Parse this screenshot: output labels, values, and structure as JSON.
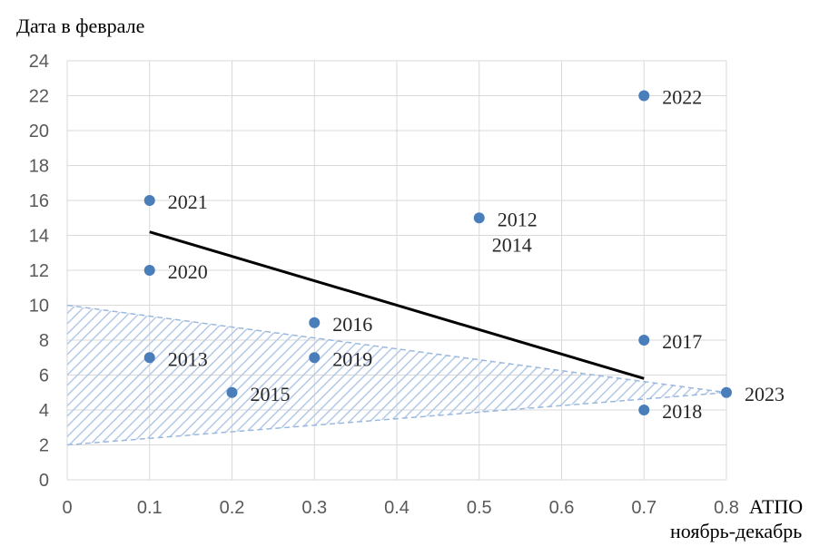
{
  "chart_data": {
    "type": "scatter",
    "title": "",
    "ylabel": "Дата в феврале",
    "xlabel_line1": "АТПО",
    "xlabel_line2": "ноябрь-декабрь",
    "xlim": [
      0,
      0.8
    ],
    "ylim": [
      0,
      24
    ],
    "x_ticks": [
      0,
      0.1,
      0.2,
      0.3,
      0.4,
      0.5,
      0.6,
      0.7,
      0.8
    ],
    "x_tick_labels": [
      "0",
      "0.1",
      "0.2",
      "0.3",
      "0.4",
      "0.5",
      "0.6",
      "0.7",
      "0.8"
    ],
    "y_ticks": [
      0,
      2,
      4,
      6,
      8,
      10,
      12,
      14,
      16,
      18,
      20,
      22,
      24
    ],
    "y_tick_labels": [
      "0",
      "2",
      "4",
      "6",
      "8",
      "10",
      "12",
      "14",
      "16",
      "18",
      "20",
      "22",
      "24"
    ],
    "grid": true,
    "points": [
      {
        "x": 0.1,
        "y": 16,
        "label": "2021"
      },
      {
        "x": 0.1,
        "y": 12,
        "label": "2020"
      },
      {
        "x": 0.1,
        "y": 7,
        "label": "2013"
      },
      {
        "x": 0.2,
        "y": 5,
        "label": "2015"
      },
      {
        "x": 0.3,
        "y": 9,
        "label": "2016"
      },
      {
        "x": 0.3,
        "y": 7,
        "label": "2019"
      },
      {
        "x": 0.5,
        "y": 15,
        "label": "2012"
      },
      {
        "x": 0.7,
        "y": 22,
        "label": "2022"
      },
      {
        "x": 0.7,
        "y": 8,
        "label": "2017"
      },
      {
        "x": 0.7,
        "y": 4,
        "label": "2018"
      },
      {
        "x": 0.8,
        "y": 5,
        "label": "2023"
      }
    ],
    "extra_labels": [
      {
        "x": 0.5,
        "y": 15,
        "label": "2014"
      }
    ],
    "trend_line": {
      "x": [
        0.1,
        0.7
      ],
      "y": [
        14.2,
        5.8
      ]
    },
    "shaded_band": {
      "x": [
        0,
        0.8
      ],
      "upper": [
        10,
        5
      ],
      "lower": [
        2,
        5
      ]
    },
    "colors": {
      "point": "#4a7ebb",
      "trend": "#000000",
      "band_stroke": "#9bb8de",
      "band_hatch": "#b4c9e6",
      "grid": "#d9d9d9"
    }
  }
}
